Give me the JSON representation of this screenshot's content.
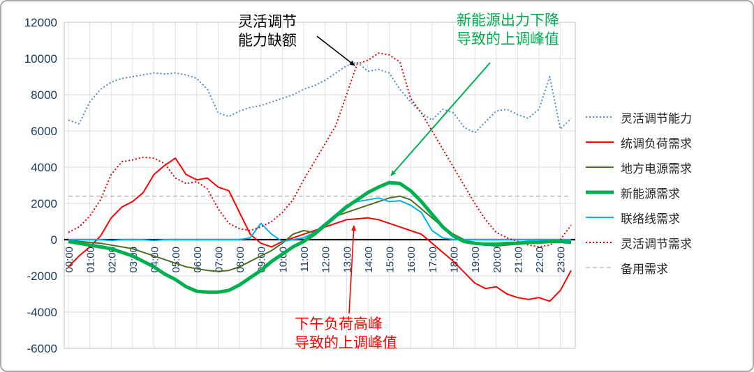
{
  "chart_data": {
    "type": "line",
    "title": "",
    "y_axis": {
      "max": 12000,
      "min": -6000,
      "step": 2000
    },
    "categories": [
      "00:00",
      "01:00",
      "02:00",
      "03:00",
      "04:00",
      "05:00",
      "06:00",
      "07:00",
      "08:00",
      "09:00",
      "10:00",
      "11:00",
      "12:00",
      "13:00",
      "14:00",
      "15:00",
      "16:00",
      "17:00",
      "18:00",
      "19:00",
      "20:00",
      "21:00",
      "22:00",
      "23:00"
    ],
    "points_per_hour": 2,
    "grid": true,
    "legend_position": "right",
    "series": [
      {
        "id": "flex_capability",
        "label": "灵活调节能力",
        "color": "#4E8AC8",
        "style": "dotted",
        "width": 2,
        "values": [
          6600,
          6400,
          7600,
          8300,
          8700,
          8900,
          9000,
          9100,
          9200,
          9150,
          9200,
          9100,
          8900,
          8300,
          7000,
          6800,
          7100,
          7300,
          7400,
          7600,
          7800,
          8000,
          8300,
          8500,
          8800,
          9200,
          9600,
          9800,
          9300,
          9400,
          9200,
          8300,
          7600,
          7000,
          6600,
          7200,
          7000,
          6200,
          5900,
          6500,
          7100,
          7200,
          6900,
          6700,
          7200,
          9000,
          6100,
          6700
        ]
      },
      {
        "id": "dispatch_load",
        "label": "统调负荷需求",
        "color": "#FF0000",
        "style": "solid",
        "width": 2,
        "values": [
          -1500,
          -900,
          -400,
          200,
          1200,
          1800,
          2100,
          2600,
          3600,
          4100,
          4500,
          3600,
          3300,
          3400,
          2900,
          2700,
          1500,
          300,
          -200,
          -400,
          -100,
          100,
          300,
          500,
          700,
          900,
          1100,
          1150,
          1200,
          1100,
          900,
          700,
          500,
          300,
          -200,
          -700,
          -1200,
          -1800,
          -2400,
          -2700,
          -2600,
          -3000,
          -3200,
          -3300,
          -3200,
          -3400,
          -2800,
          -1700
        ]
      },
      {
        "id": "local_power",
        "label": "地方电源需求",
        "color": "#4A7023",
        "style": "solid",
        "width": 2,
        "values": [
          0,
          -100,
          -150,
          -200,
          -300,
          -400,
          -500,
          -700,
          -900,
          -1100,
          -1300,
          -1500,
          -1600,
          -1700,
          -1750,
          -1700,
          -1500,
          -1200,
          -900,
          -600,
          -200,
          300,
          500,
          400,
          900,
          1300,
          1500,
          1700,
          1900,
          2100,
          2300,
          2400,
          2200,
          1700,
          1200,
          700,
          300,
          0,
          -200,
          -300,
          -350,
          -300,
          -250,
          -200,
          -150,
          -100,
          -100,
          -150
        ]
      },
      {
        "id": "new_energy",
        "label": "新能源需求",
        "color": "#00B050",
        "style": "solid",
        "width": 5,
        "values": [
          -100,
          -200,
          -300,
          -400,
          -500,
          -700,
          -900,
          -1200,
          -1500,
          -1900,
          -2200,
          -2600,
          -2850,
          -2900,
          -2900,
          -2800,
          -2500,
          -2100,
          -1700,
          -1200,
          -800,
          -400,
          -100,
          300,
          800,
          1300,
          1800,
          2200,
          2600,
          2900,
          3150,
          3100,
          2700,
          2100,
          1400,
          700,
          200,
          -100,
          -200,
          -250,
          -250,
          -200,
          -200,
          -150,
          -150,
          -100,
          -100,
          -150
        ]
      },
      {
        "id": "tie_line",
        "label": "联络线需求",
        "color": "#00B0F0",
        "style": "solid",
        "width": 2,
        "values": [
          0,
          0,
          0,
          0,
          -50,
          0,
          0,
          0,
          -50,
          0,
          0,
          0,
          0,
          0,
          0,
          0,
          0,
          100,
          900,
          300,
          -100,
          0,
          100,
          400,
          900,
          1400,
          1900,
          2100,
          2200,
          2300,
          2100,
          2150,
          1900,
          1500,
          500,
          100,
          0,
          0,
          0,
          0,
          0,
          0,
          0,
          0,
          0,
          0,
          0,
          0
        ]
      },
      {
        "id": "flex_demand",
        "label": "灵活调节需求",
        "color": "#E00000",
        "style": "dotted",
        "width": 2,
        "values": [
          400,
          700,
          1300,
          2200,
          3600,
          4300,
          4400,
          4550,
          4500,
          4200,
          3400,
          3100,
          3200,
          2800,
          1700,
          900,
          600,
          500,
          700,
          1000,
          1500,
          2200,
          3300,
          4300,
          5300,
          6300,
          8000,
          9700,
          9900,
          10300,
          10200,
          9800,
          7800,
          7000,
          6000,
          5000,
          4000,
          3000,
          2000,
          1100,
          400,
          100,
          -100,
          -300,
          -400,
          -300,
          0,
          800
        ]
      },
      {
        "id": "reserve",
        "label": "备用需求",
        "color": "#BFBFBF",
        "style": "dashed",
        "width": 1.6,
        "constant": 2400
      }
    ]
  },
  "annotations": {
    "deficit": {
      "line1": "灵活调节",
      "line2": "能力缺额",
      "color": "#000000"
    },
    "new_energy": {
      "line1": "新能源出力下降",
      "line2": "导致的上调峰值",
      "color": "#00B050"
    },
    "afternoon": {
      "line1": "下午负荷高峰",
      "line2": "导致的上调峰值",
      "color": "#FF0000"
    }
  }
}
